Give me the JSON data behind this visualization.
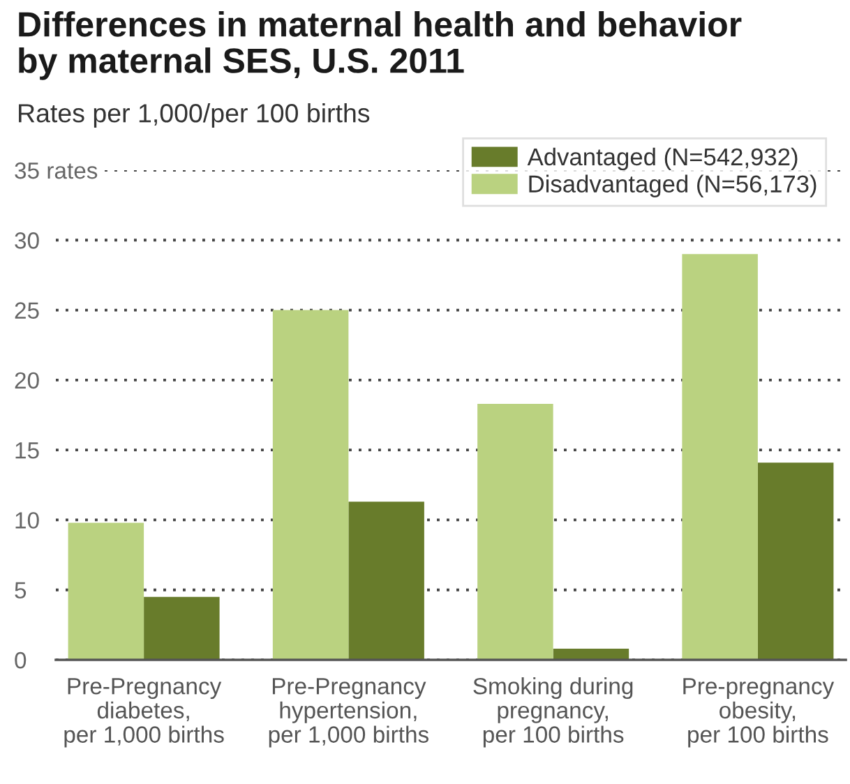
{
  "chart_data": {
    "type": "bar",
    "title": "Differences in maternal health and behavior\nby maternal SES, U.S. 2011",
    "subtitle": "Rates per 1,000/per 100 births",
    "categories": [
      "Pre-Pregnancy\ndiabetes,\nper 1,000 births",
      "Pre-Pregnancy\nhypertension,\nper 1,000 births",
      "Smoking during\npregnancy,\nper 100 births",
      "Pre-pregnancy\nobesity,\nper 100 births"
    ],
    "series": [
      {
        "name": "Advantaged (N=542,932)",
        "color": "#687c2b",
        "values": [
          4.5,
          11.3,
          0.8,
          14.1
        ]
      },
      {
        "name": "Disadvantaged (N=56,173)",
        "color": "#bad280",
        "values": [
          9.8,
          25.0,
          18.3,
          29.0
        ]
      }
    ],
    "ylim": [
      0,
      35
    ],
    "yticks": [
      0,
      5,
      10,
      15,
      20,
      25,
      30,
      {
        "value": 35,
        "label": "35 rates"
      }
    ],
    "grid": "y",
    "legend": "top right"
  }
}
